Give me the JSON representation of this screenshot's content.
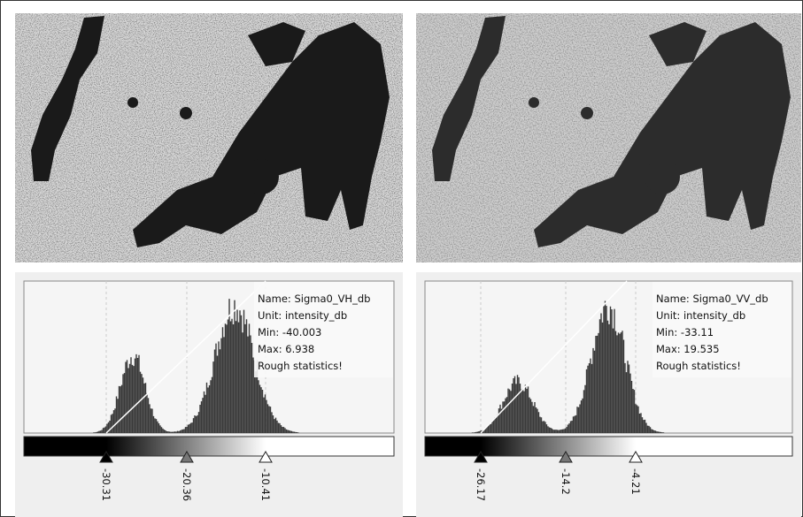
{
  "panels": [
    {
      "name": "Name: Sigma0_VH_db",
      "unit": "Unit: intensity_db",
      "min": "Min: -40.003",
      "max": "Max: 6.938",
      "note": "Rough statistics!",
      "sliders": [
        "-30.31",
        "-20.36",
        "-10.41"
      ]
    },
    {
      "name": "Name: Sigma0_VV_db",
      "unit": "Unit: intensity_db",
      "min": "Min: -33.11",
      "max": "Max: 19.535",
      "note": "Rough statistics!",
      "sliders": [
        "-26.17",
        "-14.2",
        "-4.21"
      ]
    }
  ]
}
